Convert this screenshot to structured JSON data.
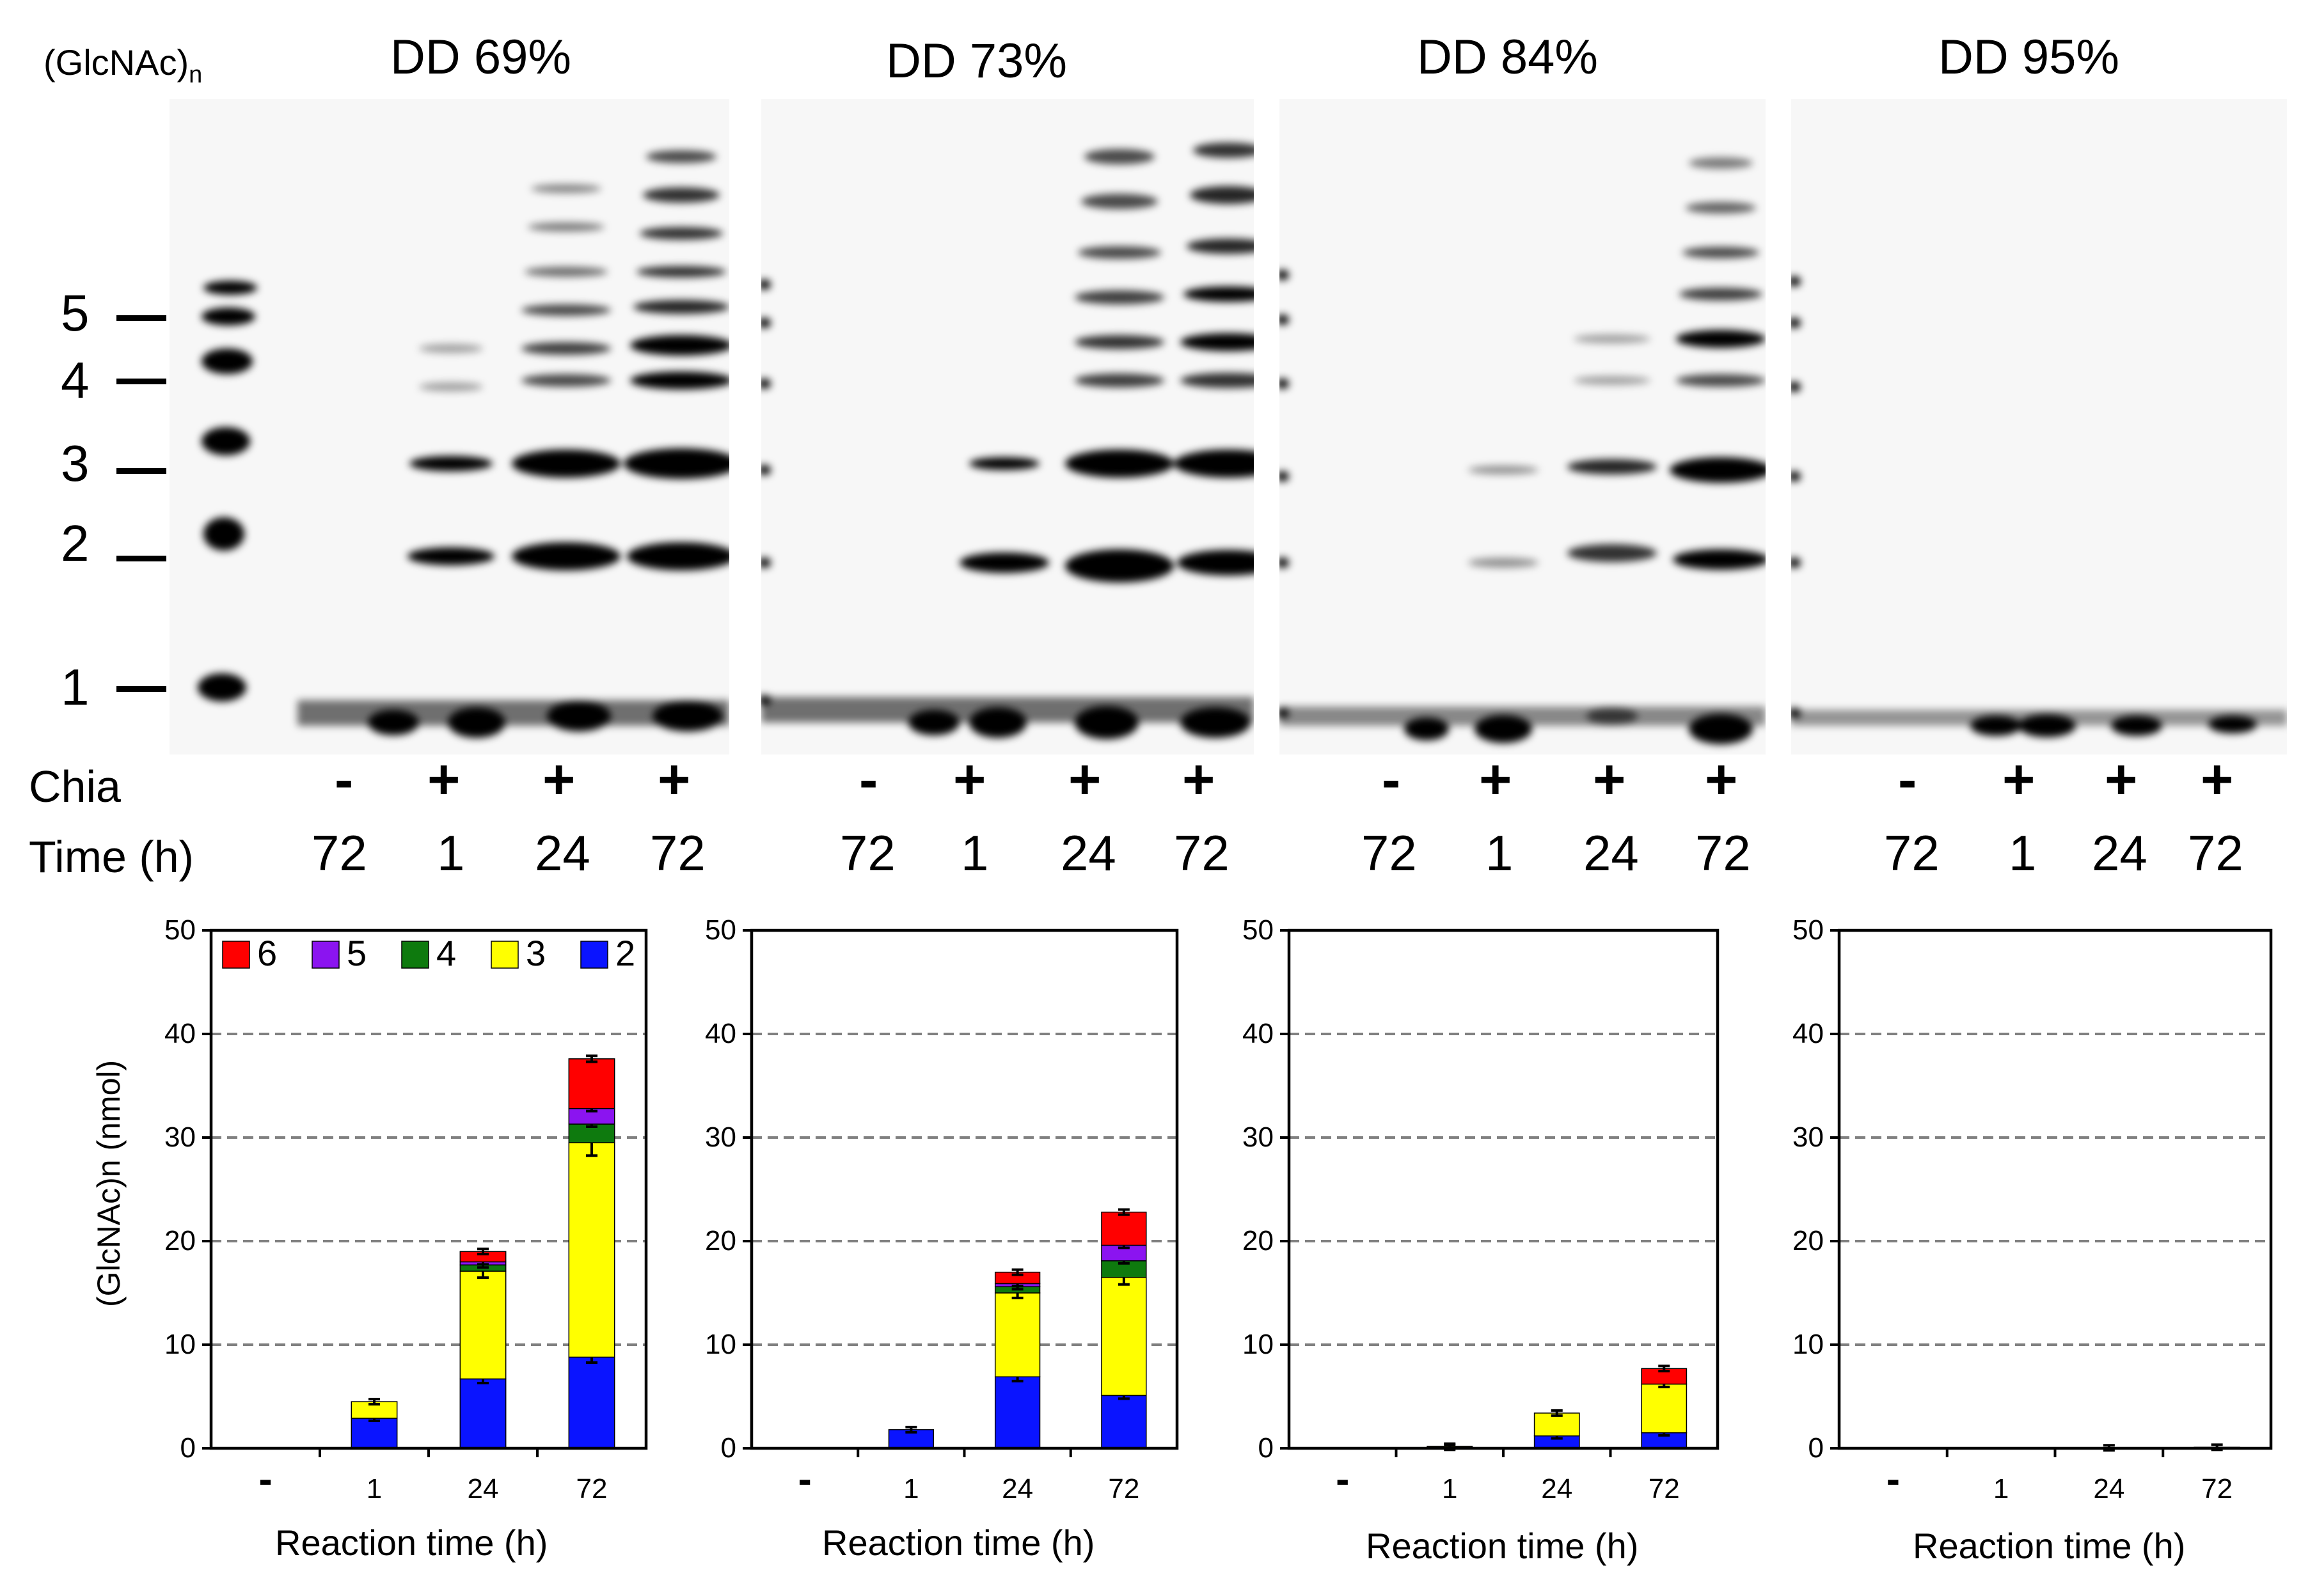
{
  "gel_header": {
    "oligomer_label": "(GlcNAc)",
    "oligomer_sub": "n",
    "marker_labels": [
      "5",
      "4",
      "3",
      "2",
      "1"
    ],
    "row_labels": {
      "chia": "Chia",
      "time": "Time (h)"
    }
  },
  "panels": [
    {
      "title": "DD 69%",
      "chia": [
        "-",
        "+",
        "+",
        "+"
      ],
      "time": [
        "72",
        "1",
        "24",
        "72"
      ]
    },
    {
      "title": "DD 73%",
      "chia": [
        "-",
        "+",
        "+",
        "+"
      ],
      "time": [
        "72",
        "1",
        "24",
        "72"
      ]
    },
    {
      "title": "DD 84%",
      "chia": [
        "-",
        "+",
        "+",
        "+"
      ],
      "time": [
        "72",
        "1",
        "24",
        "72"
      ]
    },
    {
      "title": "DD 95%",
      "chia": [
        "-",
        "+",
        "+",
        "+"
      ],
      "time": [
        "72",
        "1",
        "24",
        "72"
      ]
    }
  ],
  "chart_data": [
    {
      "type": "bar",
      "stacked": true,
      "title": "DD 69%",
      "categories": [
        "-",
        "1",
        "24",
        "72"
      ],
      "xlabel": "Reaction time (h)",
      "ylabel": "(GlcNAc)n (nmol)",
      "ylim": [
        0,
        50
      ],
      "yticks": [
        "0",
        "10",
        "20",
        "30",
        "40",
        "50"
      ],
      "grid": true,
      "legend": "top-left",
      "series": [
        {
          "name": "2",
          "color": "#0a14ff",
          "values": [
            0,
            2.9,
            6.7,
            8.8
          ]
        },
        {
          "name": "3",
          "color": "#ffff00",
          "values": [
            0,
            1.6,
            10.4,
            20.7
          ]
        },
        {
          "name": "4",
          "color": "#0e7a0e",
          "values": [
            0,
            0,
            0.6,
            1.8
          ]
        },
        {
          "name": "5",
          "color": "#8b14f0",
          "values": [
            0,
            0,
            0.3,
            1.5
          ]
        },
        {
          "name": "6",
          "color": "#ff0000",
          "values": [
            0,
            0,
            1.0,
            4.8
          ]
        }
      ]
    },
    {
      "type": "bar",
      "stacked": true,
      "title": "DD 73%",
      "categories": [
        "-",
        "1",
        "24",
        "72"
      ],
      "xlabel": "Reaction time (h)",
      "ylim": [
        0,
        50
      ],
      "yticks": [
        "0",
        "10",
        "20",
        "30",
        "40",
        "50"
      ],
      "grid": true,
      "series": [
        {
          "name": "2",
          "color": "#0a14ff",
          "values": [
            0,
            1.8,
            6.9,
            5.1
          ]
        },
        {
          "name": "3",
          "color": "#ffff00",
          "values": [
            0,
            0,
            8.1,
            11.4
          ]
        },
        {
          "name": "4",
          "color": "#0e7a0e",
          "values": [
            0,
            0,
            0.6,
            1.6
          ]
        },
        {
          "name": "5",
          "color": "#8b14f0",
          "values": [
            0,
            0,
            0.3,
            1.5
          ]
        },
        {
          "name": "6",
          "color": "#ff0000",
          "values": [
            0,
            0,
            1.1,
            3.2
          ]
        }
      ]
    },
    {
      "type": "bar",
      "stacked": true,
      "title": "DD 84%",
      "categories": [
        "-",
        "1",
        "24",
        "72"
      ],
      "xlabel": "Reaction time (h)",
      "ylim": [
        0,
        50
      ],
      "yticks": [
        "0",
        "10",
        "20",
        "30",
        "40",
        "50"
      ],
      "grid": true,
      "series": [
        {
          "name": "2",
          "color": "#0a14ff",
          "values": [
            0,
            0.1,
            1.2,
            1.5
          ]
        },
        {
          "name": "3",
          "color": "#ffff00",
          "values": [
            0,
            0.1,
            2.2,
            4.7
          ]
        },
        {
          "name": "4",
          "color": "#0e7a0e",
          "values": [
            0,
            0,
            0,
            0
          ]
        },
        {
          "name": "5",
          "color": "#8b14f0",
          "values": [
            0,
            0,
            0,
            0
          ]
        },
        {
          "name": "6",
          "color": "#ff0000",
          "values": [
            0,
            0,
            0,
            1.5
          ]
        }
      ]
    },
    {
      "type": "bar",
      "stacked": true,
      "title": "DD 95%",
      "categories": [
        "-",
        "1",
        "24",
        "72"
      ],
      "xlabel": "Reaction time (h)",
      "ylim": [
        0,
        50
      ],
      "yticks": [
        "0",
        "10",
        "20",
        "30",
        "40",
        "50"
      ],
      "grid": true,
      "series": [
        {
          "name": "2",
          "color": "#0a14ff",
          "values": [
            0,
            0,
            0.05,
            0.1
          ]
        },
        {
          "name": "3",
          "color": "#ffff00",
          "values": [
            0,
            0,
            0,
            0
          ]
        },
        {
          "name": "4",
          "color": "#0e7a0e",
          "values": [
            0,
            0,
            0,
            0
          ]
        },
        {
          "name": "5",
          "color": "#8b14f0",
          "values": [
            0,
            0,
            0,
            0
          ]
        },
        {
          "name": "6",
          "color": "#ff0000",
          "values": [
            0,
            0,
            0,
            0
          ]
        }
      ]
    }
  ]
}
